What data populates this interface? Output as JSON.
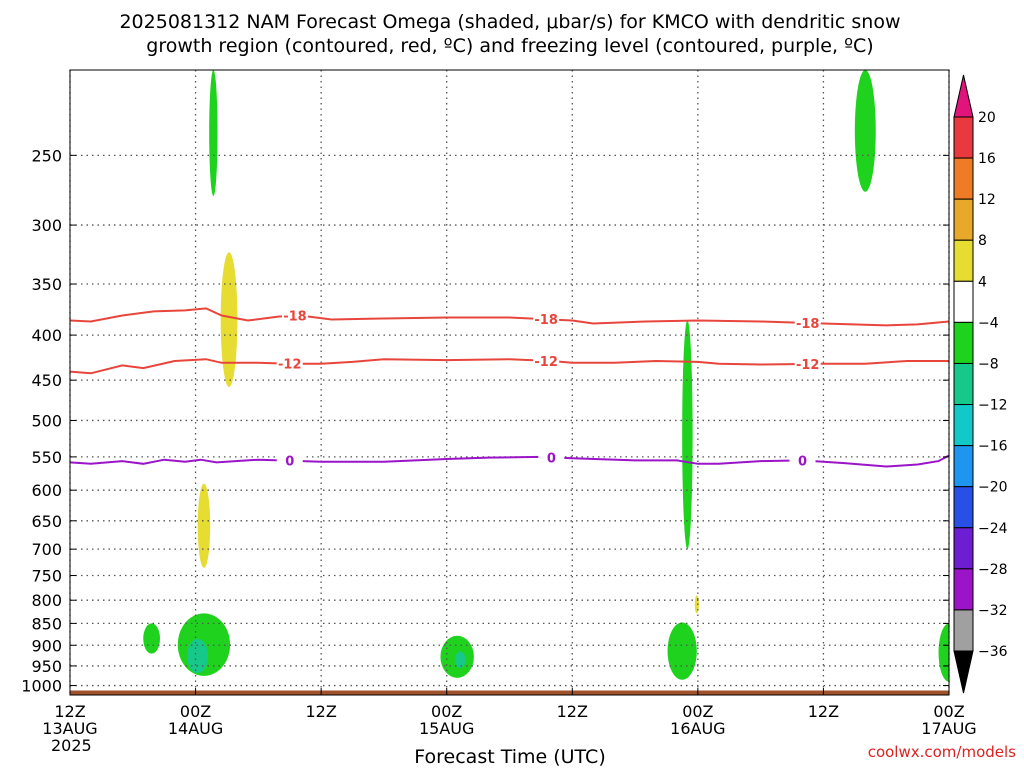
{
  "chart_data": {
    "type": "heatmap",
    "title_line1": "2025081312 NAM Forecast Omega (shaded, μbar/s) for KMCO with dendritic snow",
    "title_line2": "growth region (contoured, red, ºC) and freezing level (contoured, purple, ºC)",
    "xlabel": "Forecast Time (UTC)",
    "credit": "coolwx.com/models",
    "x_range_hours": [
      0,
      84
    ],
    "y_range_hPa": [
      200,
      1025
    ],
    "y_scale": "log",
    "y_ticks": [
      250,
      300,
      350,
      400,
      450,
      500,
      550,
      600,
      650,
      700,
      750,
      800,
      850,
      900,
      950,
      1000
    ],
    "x_ticks": [
      {
        "hour": 0,
        "l1": "12Z",
        "l2": "13AUG",
        "l3": "2025"
      },
      {
        "hour": 12,
        "l1": "00Z",
        "l2": "14AUG",
        "l3": ""
      },
      {
        "hour": 24,
        "l1": "12Z",
        "l2": "",
        "l3": ""
      },
      {
        "hour": 36,
        "l1": "00Z",
        "l2": "15AUG",
        "l3": ""
      },
      {
        "hour": 48,
        "l1": "12Z",
        "l2": "",
        "l3": ""
      },
      {
        "hour": 60,
        "l1": "00Z",
        "l2": "16AUG",
        "l3": ""
      },
      {
        "hour": 72,
        "l1": "12Z",
        "l2": "",
        "l3": ""
      },
      {
        "hour": 84,
        "l1": "00Z",
        "l2": "17AUG",
        "l3": ""
      }
    ],
    "grid": true,
    "colorbar": {
      "levels": [
        {
          "label": "20",
          "color": "#e8393f"
        },
        {
          "label": "16",
          "color": "#f07b27"
        },
        {
          "label": "12",
          "color": "#e8a92a"
        },
        {
          "label": "8",
          "color": "#e6dc32"
        },
        {
          "label": "4",
          "color": "#ffffff"
        },
        {
          "label": "−4",
          "color": "#1ed21e"
        },
        {
          "label": "−8",
          "color": "#16c88a"
        },
        {
          "label": "−12",
          "color": "#12c8c8"
        },
        {
          "label": "−16",
          "color": "#1e96f0"
        },
        {
          "label": "−20",
          "color": "#2850e6"
        },
        {
          "label": "−24",
          "color": "#6e1ed2"
        },
        {
          "label": "−28",
          "color": "#9b14c8"
        },
        {
          "label": "−32",
          "color": "#a0a0a0"
        },
        {
          "label": "−36",
          "color": "#000000"
        }
      ],
      "top_arrow_color": "#e0147a",
      "bottom_arrow_color": "#000000"
    },
    "contours": [
      {
        "name": "",
        "label": "-18",
        "color": "#e8453c",
        "points": [
          [
            0,
            385
          ],
          [
            2,
            386
          ],
          [
            5,
            380
          ],
          [
            8,
            376
          ],
          [
            11,
            375
          ],
          [
            13,
            373
          ],
          [
            14.5,
            380
          ],
          [
            17,
            385
          ],
          [
            20,
            381
          ],
          [
            22,
            380
          ],
          [
            25,
            384
          ],
          [
            30,
            383
          ],
          [
            36,
            382
          ],
          [
            42,
            382
          ],
          [
            46,
            384
          ],
          [
            48,
            385
          ],
          [
            50,
            388
          ],
          [
            55,
            386
          ],
          [
            60,
            385
          ],
          [
            66,
            386
          ],
          [
            72,
            388
          ],
          [
            78,
            390
          ],
          [
            81,
            389
          ],
          [
            84,
            386
          ]
        ],
        "label_hours": [
          21.5,
          45.5,
          70.5
        ]
      },
      {
        "name": "",
        "label": "-12",
        "color": "#e8453c",
        "points": [
          [
            0,
            440
          ],
          [
            2,
            442
          ],
          [
            5,
            433
          ],
          [
            7,
            436
          ],
          [
            10,
            428
          ],
          [
            13,
            426
          ],
          [
            14.5,
            430
          ],
          [
            18,
            430
          ],
          [
            21,
            431
          ],
          [
            24,
            431
          ],
          [
            27,
            429
          ],
          [
            30,
            426
          ],
          [
            36,
            427
          ],
          [
            42,
            426
          ],
          [
            46,
            428
          ],
          [
            48,
            430
          ],
          [
            52,
            430
          ],
          [
            56,
            428
          ],
          [
            60,
            429
          ],
          [
            62,
            431
          ],
          [
            66,
            432
          ],
          [
            72,
            431
          ],
          [
            76,
            431
          ],
          [
            80,
            428
          ],
          [
            84,
            428
          ]
        ],
        "label_hours": [
          21,
          45.5,
          70.5
        ]
      },
      {
        "name": "",
        "label": "0",
        "color": "#9b14c8",
        "points": [
          [
            0,
            558
          ],
          [
            2,
            560
          ],
          [
            5,
            556
          ],
          [
            7,
            560
          ],
          [
            9,
            554
          ],
          [
            11,
            557
          ],
          [
            12.5,
            554
          ],
          [
            14,
            558
          ],
          [
            18,
            554
          ],
          [
            20,
            555
          ],
          [
            24,
            557
          ],
          [
            30,
            557
          ],
          [
            36,
            553
          ],
          [
            40,
            551
          ],
          [
            45,
            550
          ],
          [
            48,
            552
          ],
          [
            54,
            555
          ],
          [
            58,
            555
          ],
          [
            60,
            560
          ],
          [
            62,
            560
          ],
          [
            66,
            556
          ],
          [
            70,
            555
          ],
          [
            74,
            559
          ],
          [
            78,
            564
          ],
          [
            81,
            561
          ],
          [
            83,
            556
          ],
          [
            84,
            548
          ]
        ],
        "label_hours": [
          21,
          46,
          70
        ]
      }
    ],
    "shaded_regions": [
      {
        "value": -6,
        "color": "#1ed21e",
        "shape": "ellipse",
        "center": [
          13.7,
          220
        ],
        "half_width_h": 0.4,
        "p_top": 200,
        "p_bottom": 278
      },
      {
        "value": 6,
        "color": "#e6dc32",
        "shape": "ellipse",
        "center": [
          15.2,
          390
        ],
        "half_width_h": 0.8,
        "p_top": 322,
        "p_bottom": 458
      },
      {
        "value": 6,
        "color": "#e6dc32",
        "shape": "ellipse",
        "center": [
          12.8,
          660
        ],
        "half_width_h": 0.6,
        "p_top": 590,
        "p_bottom": 735
      },
      {
        "value": -6,
        "color": "#1ed21e",
        "shape": "ellipse",
        "center": [
          76.0,
          225
        ],
        "half_width_h": 1.0,
        "p_top": 200,
        "p_bottom": 275
      },
      {
        "value": -6,
        "color": "#1ed21e",
        "shape": "ellipse",
        "center": [
          59.0,
          530
        ],
        "half_width_h": 0.5,
        "p_top": 385,
        "p_bottom": 700
      },
      {
        "value": 6,
        "color": "#e6dc32",
        "shape": "ellipse",
        "center": [
          59.9,
          808
        ],
        "half_width_h": 0.2,
        "p_top": 790,
        "p_bottom": 828
      },
      {
        "value": -6,
        "color": "#1ed21e",
        "shape": "ellipse",
        "center": [
          7.8,
          885
        ],
        "half_width_h": 0.8,
        "p_top": 850,
        "p_bottom": 920
      },
      {
        "value": -6,
        "color": "#1ed21e",
        "shape": "ellipse",
        "center": [
          12.8,
          905
        ],
        "half_width_h": 2.5,
        "p_top": 828,
        "p_bottom": 975
      },
      {
        "value": -10,
        "color": "#16c88a",
        "shape": "ellipse",
        "center": [
          12.2,
          925
        ],
        "half_width_h": 1.0,
        "p_top": 885,
        "p_bottom": 968
      },
      {
        "value": -6,
        "color": "#1ed21e",
        "shape": "ellipse",
        "center": [
          37.0,
          925
        ],
        "half_width_h": 1.6,
        "p_top": 878,
        "p_bottom": 980
      },
      {
        "value": -10,
        "color": "#16c88a",
        "shape": "ellipse",
        "center": [
          37.3,
          935
        ],
        "half_width_h": 0.5,
        "p_top": 915,
        "p_bottom": 955
      },
      {
        "value": -6,
        "color": "#1ed21e",
        "shape": "ellipse",
        "center": [
          58.5,
          915
        ],
        "half_width_h": 1.4,
        "p_top": 848,
        "p_bottom": 985
      },
      {
        "value": -6,
        "color": "#1ed21e",
        "shape": "ellipse",
        "center": [
          84.0,
          895
        ],
        "half_width_h": 1.0,
        "p_top": 850,
        "p_bottom": 990
      }
    ],
    "ground_band": {
      "color": "#a0522d",
      "p_top": 1013,
      "p_bottom": 1025
    }
  }
}
